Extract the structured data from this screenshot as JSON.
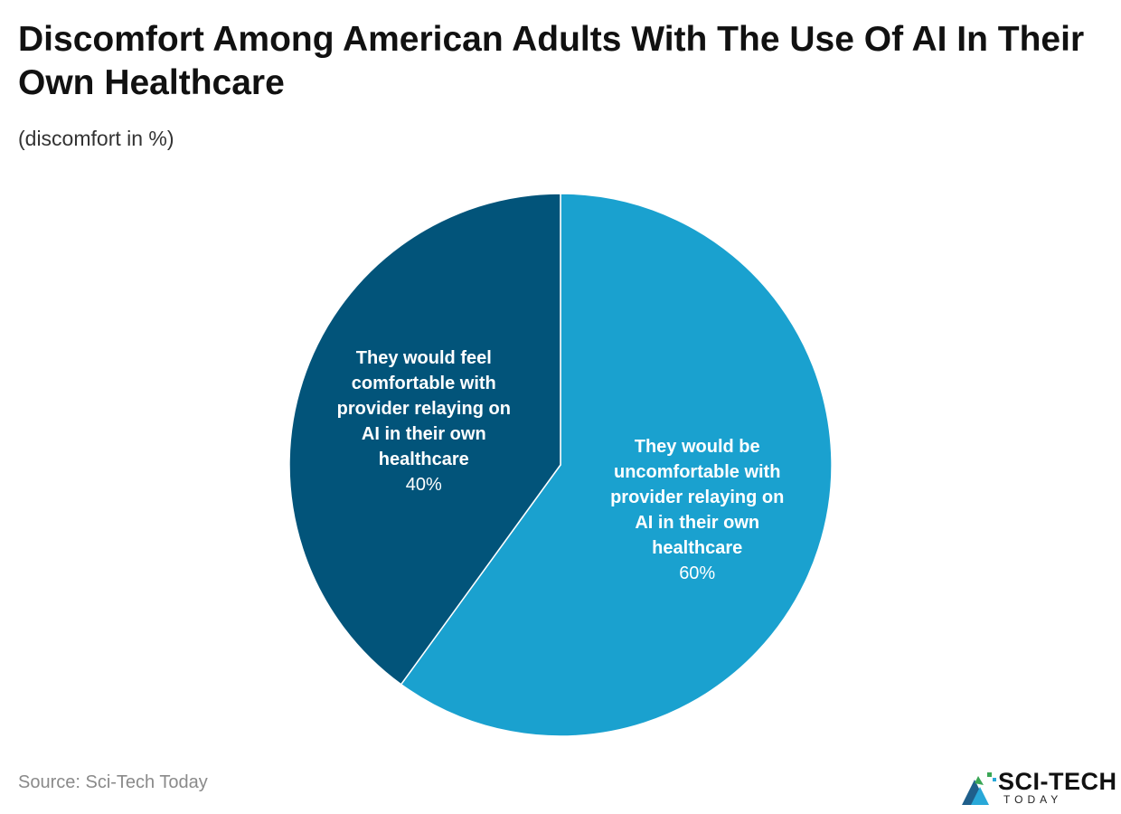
{
  "header": {
    "title": "Discomfort Among American Adults With The Use Of AI In Their Own Healthcare",
    "subtitle": "(discomfort in %)"
  },
  "footer": {
    "source": "Source: Sci-Tech Today",
    "logo_text": "SCI-TECH",
    "logo_sub": "TODAY"
  },
  "chart_data": {
    "type": "pie",
    "title": "Discomfort Among American Adults With The Use Of AI In Their Own Healthcare",
    "subtitle": "(discomfort in %)",
    "slices": [
      {
        "label": "They would be uncomfortable with provider relaying on AI in their own healthcare",
        "label_lines": [
          "They would be",
          "uncomfortable with",
          "provider relaying on",
          "AI in their own",
          "healthcare"
        ],
        "value": 60,
        "value_label": "60%",
        "color": "#1aa1cf"
      },
      {
        "label": "They would feel comfortable with provider relaying on AI in their own healthcare",
        "label_lines": [
          "They would feel",
          "comfortable with",
          "provider relaying on",
          "AI in their own",
          "healthcare"
        ],
        "value": 40,
        "value_label": "40%",
        "color": "#02547a"
      }
    ],
    "start_angle": "12 o'clock",
    "direction": "clockwise"
  }
}
